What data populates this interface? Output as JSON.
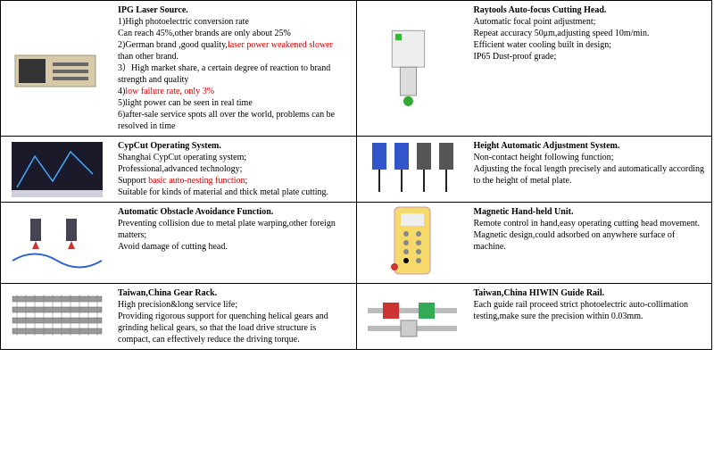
{
  "cells": [
    {
      "row": 0,
      "col": 0,
      "title": "IPG Laser Source.",
      "lines": [
        {
          "t": "1)High photoelectric conversion rate"
        },
        {
          "t": "Can reach 45%,other brands are only about 25%"
        },
        {
          "parts": [
            {
              "t": "2)German brand ,good quality,"
            },
            {
              "t": "laser power weakened slower",
              "red": true
            },
            {
              "t": " than other brand."
            }
          ]
        },
        {
          "t": "3）High market share, a certain degree of reaction to brand strength and quality"
        },
        {
          "parts": [
            {
              "t": "4)"
            },
            {
              "t": "low failure rate, only 3%",
              "red": true
            }
          ]
        },
        {
          "t": "5)light power can be seen in real time"
        },
        {
          "t": "6)after-sale service spots all over the world, problems can be resolved in time"
        }
      ]
    },
    {
      "row": 0,
      "col": 1,
      "title": "Raytools Auto-focus Cutting Head.",
      "lines": [
        {
          "t": "Automatic focal point adjustment;"
        },
        {
          "t": "Repeat accuracy 50μm,adjusting speed 10m/min."
        },
        {
          "t": "Efficient water cooling built in design;"
        },
        {
          "t": "IP65 Dust-proof grade;"
        }
      ]
    },
    {
      "row": 1,
      "col": 0,
      "title": "CypCut Operating System.",
      "lines": [
        {
          "t": "Shanghai CypCut operating system;"
        },
        {
          "t": "Professional,advanced technology;"
        },
        {
          "parts": [
            {
              "t": "Support "
            },
            {
              "t": "basic auto-nesting function",
              "red": true
            },
            {
              "t": ";"
            }
          ]
        },
        {
          "t": "Suitable for kinds of material and thick metal plate cutting."
        }
      ]
    },
    {
      "row": 1,
      "col": 1,
      "title": "Height Automatic Adjustment System.",
      "lines": [
        {
          "t": "Non-contact height following function;"
        },
        {
          "t": "Adjusting the focal length precisely and automatically according to the height of metal plate."
        }
      ]
    },
    {
      "row": 2,
      "col": 0,
      "title": "Automatic Obstacle Avoidance Function.",
      "lines": [
        {
          "t": "Preventing collision due to metal plate warping,other foreign matters;"
        },
        {
          "t": "Avoid damage of cutting head."
        }
      ]
    },
    {
      "row": 2,
      "col": 1,
      "title": "Magnetic Hand-held Unit.",
      "lines": [
        {
          "t": "Remote control in hand,easy operating cutting head movement."
        },
        {
          "t": "Magnetic design,could adsorbed on anywhere surface of machine."
        }
      ]
    },
    {
      "row": 3,
      "col": 0,
      "title": "Taiwan,China Gear Rack.",
      "lines": [
        {
          "t": "High precision&long service life;"
        },
        {
          "t": "Providing rigorous support for quenching helical gears and grinding helical gears, so that the load drive structure is compact, can effectively reduce the driving torque."
        }
      ]
    },
    {
      "row": 3,
      "col": 1,
      "title": "Taiwan,China HIWIN Guide Rail.",
      "lines": [
        {
          "t": "Each guide rail proceed strict photoelectric auto-collimation testing,make sure the precision within 0.03mm."
        }
      ]
    }
  ],
  "svgs": [
    "<svg viewBox='0 0 110 70'><rect x='8' y='20' width='90' height='35' fill='#d8c9a8' stroke='#998' stroke-width='1'/><rect x='12' y='24' width='30' height='27' fill='#333'/><rect x='50' y='28' width='40' height='4' fill='#666'/><rect x='50' y='36' width='40' height='4' fill='#666'/><rect x='50' y='44' width='40' height='4' fill='#666'/></svg>",
    "<svg viewBox='0 0 110 110'><rect x='30' y='8' width='40' height='45' fill='#eee' stroke='#999'/><rect x='40' y='53' width='20' height='35' fill='#ddd' stroke='#888'/><circle cx='50' cy='95' r='6' fill='#3a3'/><rect x='34' y='12' width='8' height='8' fill='#3b3'/></svg>",
    "<svg viewBox='0 0 110 70'><rect x='4' y='4' width='102' height='62' fill='#1a1a2a'/><polyline points='10,55 30,20 50,48 70,15 95,40' stroke='#4af' fill='none' stroke-width='1.5'/><rect x='4' y='58' width='102' height='8' fill='#d0d0dd'/></svg>",
    "<svg viewBox='0 0 110 70'><g transform='translate(10,5)'><rect width='16' height='30' fill='#3355cc'/><line x1='8' y1='30' x2='8' y2='55' stroke='#222' stroke-width='2'/></g><g transform='translate(35,5)'><rect width='16' height='30' fill='#3355cc'/><line x1='8' y1='30' x2='8' y2='55' stroke='#222' stroke-width='2'/></g><g transform='translate(60,5)'><rect width='16' height='30' fill='#555'/><line x1='8' y1='30' x2='8' y2='55' stroke='#222' stroke-width='2'/></g><g transform='translate(85,5)'><rect width='16' height='30' fill='#555'/><line x1='8' y1='30' x2='8' y2='55' stroke='#222' stroke-width='2'/></g></svg>",
    "<svg viewBox='0 0 110 70'><rect x='25' y='8' width='12' height='25' fill='#445'/><rect x='65' y='8' width='12' height='25' fill='#445'/><polygon points='31,33 27,42 35,42' fill='#c33'/><polygon points='71,33 67,42 75,42' fill='#c33'/><path d='M5,55 Q30,40 55,55 Q80,70 105,55' stroke='#3366cc' stroke-width='2' fill='none'/></svg>",
    "<svg viewBox='0 0 110 90'><rect x='35' y='5' width='40' height='75' rx='5' fill='#f5d96b' stroke='#c9a'/><rect x='42' y='12' width='26' height='14' fill='#eee'/><circle cx='48' cy='35' r='3' fill='#888'/><circle cx='62' cy='35' r='3' fill='#888'/><circle cx='48' cy='45' r='3' fill='#888'/><circle cx='62' cy='45' r='3' fill='#888'/><circle cx='48' cy='55' r='3' fill='#888'/><circle cx='62' cy='55' r='3' fill='#888'/><circle cx='48' cy='65' r='3' fill '#888'/><circle cx='62' cy='65' r='3' fill='#888'/><circle cx='35' cy='72' r='4' fill='#c33'/></svg>",
    "<svg viewBox='0 0 110 70'><g fill='#999' stroke='#666' stroke-width='0.5'><rect x='5' y='12' width='100' height='6'/><rect x='5' y='24' width='100' height='6'/><rect x='5' y='36' width='100' height='6'/><rect x='5' y='48' width='100' height='6'/></g><g stroke='#777' stroke-width='0.5'><line x1='10' y1='10' x2='10' y2='56'/><line x1='20' y1='10' x2='20' y2='56'/><line x1='30' y1='10' x2='30' y2='56'/><line x1='40' y1='10' x2='40' y2='56'/><line x1='50' y1='10' x2='50' y2='56'/><line x1='60' y1='10' x2='60' y2='56'/><line x1='70' y1='10' x2='70' y2='56'/><line x1='80' y1='10' x2='80' y2='56'/><line x1='90' y1='10' x2='90' y2='56'/><line x1='100' y1='10' x2='100' y2='56'/></g></svg>",
    "<svg viewBox='0 0 110 55'><rect x='5' y='18' width='100' height='6' fill='#bbb'/><rect x='22' y='12' width='18' height='18' fill='#c33'/><rect x='62' y='12' width='18' height='18' fill='#3a5'/><rect x='5' y='38' width='100' height='6' fill='#bbb'/><rect x='42' y='32' width='18' height='18' fill='#ccc' stroke='#888'/></svg>"
  ]
}
